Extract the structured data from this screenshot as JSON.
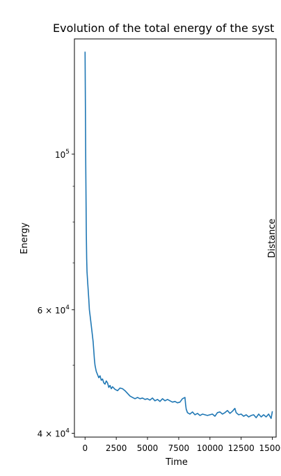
{
  "chart_data": {
    "type": "line",
    "title": "Evolution of the total energy of the syst",
    "xlabel": "Time",
    "ylabel": "Energy",
    "right_ylabel": "Distance",
    "yscale": "log",
    "xlim": [
      -850,
      15300
    ],
    "ylim": [
      39500,
      146000
    ],
    "grid": false,
    "x_ticks": [
      0,
      2500,
      5000,
      7500,
      10000,
      12500,
      15000
    ],
    "x_tick_labels": [
      "0",
      "2500",
      "5000",
      "7500",
      "10000",
      "12500",
      "15000"
    ],
    "y_ticks": [
      {
        "value": 100000,
        "base": "10",
        "exp": "5"
      },
      {
        "value": 60000,
        "base": "6 × 10",
        "exp": "4"
      },
      {
        "value": 40000,
        "base": "4 × 10",
        "exp": "4"
      }
    ],
    "series": [
      {
        "color": "#1f77b4",
        "points": [
          [
            0,
            140000
          ],
          [
            20,
            125000
          ],
          [
            40,
            108000
          ],
          [
            60,
            96000
          ],
          [
            80,
            86000
          ],
          [
            100,
            77000
          ],
          [
            130,
            71000
          ],
          [
            160,
            68000
          ],
          [
            200,
            66000
          ],
          [
            250,
            64000
          ],
          [
            300,
            62000
          ],
          [
            350,
            60000
          ],
          [
            400,
            59000
          ],
          [
            450,
            58000
          ],
          [
            500,
            57000
          ],
          [
            550,
            56000
          ],
          [
            600,
            55000
          ],
          [
            650,
            54000
          ],
          [
            700,
            52500
          ],
          [
            750,
            51000
          ],
          [
            800,
            50000
          ],
          [
            850,
            49500
          ],
          [
            900,
            49000
          ],
          [
            1000,
            48500
          ],
          [
            1100,
            48000
          ],
          [
            1200,
            48300
          ],
          [
            1300,
            47600
          ],
          [
            1400,
            47800
          ],
          [
            1500,
            47200
          ],
          [
            1600,
            47000
          ],
          [
            1700,
            47500
          ],
          [
            1800,
            47200
          ],
          [
            1900,
            46500
          ],
          [
            2000,
            46800
          ],
          [
            2100,
            46300
          ],
          [
            2200,
            46600
          ],
          [
            2400,
            46200
          ],
          [
            2600,
            46000
          ],
          [
            2800,
            46400
          ],
          [
            3000,
            46300
          ],
          [
            3200,
            46000
          ],
          [
            3400,
            45600
          ],
          [
            3600,
            45200
          ],
          [
            3800,
            45000
          ],
          [
            4000,
            44800
          ],
          [
            4200,
            45000
          ],
          [
            4400,
            44800
          ],
          [
            4600,
            44900
          ],
          [
            4800,
            44700
          ],
          [
            5000,
            44800
          ],
          [
            5200,
            44600
          ],
          [
            5400,
            44900
          ],
          [
            5600,
            44500
          ],
          [
            5800,
            44700
          ],
          [
            6000,
            44400
          ],
          [
            6200,
            44800
          ],
          [
            6400,
            44500
          ],
          [
            6600,
            44700
          ],
          [
            6800,
            44500
          ],
          [
            7000,
            44300
          ],
          [
            7200,
            44400
          ],
          [
            7400,
            44200
          ],
          [
            7600,
            44300
          ],
          [
            7800,
            44800
          ],
          [
            8000,
            45000
          ],
          [
            8050,
            44000
          ],
          [
            8100,
            43300
          ],
          [
            8200,
            42800
          ],
          [
            8400,
            42600
          ],
          [
            8600,
            42900
          ],
          [
            8800,
            42500
          ],
          [
            9000,
            42700
          ],
          [
            9200,
            42400
          ],
          [
            9400,
            42600
          ],
          [
            9600,
            42500
          ],
          [
            9800,
            42400
          ],
          [
            10000,
            42500
          ],
          [
            10200,
            42600
          ],
          [
            10400,
            42300
          ],
          [
            10600,
            42800
          ],
          [
            10800,
            42900
          ],
          [
            11000,
            42600
          ],
          [
            11200,
            42800
          ],
          [
            11400,
            43100
          ],
          [
            11600,
            42700
          ],
          [
            11800,
            43000
          ],
          [
            12000,
            43400
          ],
          [
            12100,
            42800
          ],
          [
            12300,
            42500
          ],
          [
            12500,
            42600
          ],
          [
            12700,
            42300
          ],
          [
            12900,
            42500
          ],
          [
            13100,
            42200
          ],
          [
            13300,
            42400
          ],
          [
            13500,
            42500
          ],
          [
            13700,
            42100
          ],
          [
            13900,
            42600
          ],
          [
            14100,
            42200
          ],
          [
            14300,
            42500
          ],
          [
            14500,
            42200
          ],
          [
            14700,
            42600
          ],
          [
            14900,
            42000
          ],
          [
            15000,
            43000
          ]
        ]
      }
    ]
  }
}
